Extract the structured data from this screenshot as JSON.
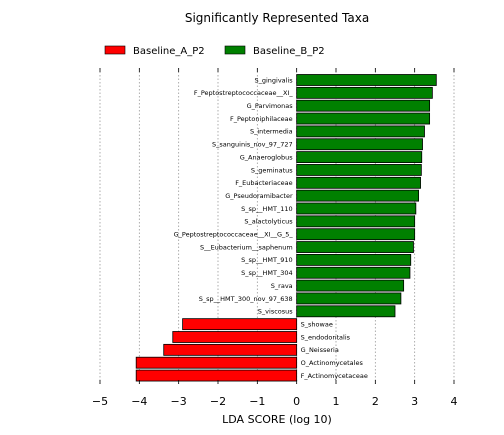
{
  "chart_data": {
    "type": "bar",
    "orientation": "horizontal",
    "title": "Significantly Represented Taxa",
    "xlabel": "LDA SCORE (log 10)",
    "ylabel": "",
    "xlim": [
      -5,
      4
    ],
    "xticks": [
      -5,
      -4,
      -3,
      -2,
      -1,
      0,
      1,
      2,
      3,
      4
    ],
    "xtick_labels": [
      "−5",
      "−4",
      "−3",
      "−2",
      "−1",
      "0",
      "1",
      "2",
      "3",
      "4"
    ],
    "grid": "vertical dotted",
    "legend_position": "top",
    "colors": {
      "Baseline_A_P2": "#ff0000",
      "Baseline_B_P2": "#008000"
    },
    "series": [
      {
        "name": "Baseline_A_P2",
        "color": "#ff0000"
      },
      {
        "name": "Baseline_B_P2",
        "color": "#008000"
      }
    ],
    "bars": [
      {
        "label": "S_gingivalis",
        "value": 3.55,
        "group": "Baseline_B_P2"
      },
      {
        "label": "F_Peptostreptococcaceae__XI_",
        "value": 3.45,
        "group": "Baseline_B_P2"
      },
      {
        "label": "G_Parvimonas",
        "value": 3.38,
        "group": "Baseline_B_P2"
      },
      {
        "label": "F_Peptoniphilaceae",
        "value": 3.38,
        "group": "Baseline_B_P2"
      },
      {
        "label": "S_intermedia",
        "value": 3.25,
        "group": "Baseline_B_P2"
      },
      {
        "label": "S_sanguinis_nov_97_727",
        "value": 3.2,
        "group": "Baseline_B_P2"
      },
      {
        "label": "G_Anaeroglobus",
        "value": 3.18,
        "group": "Baseline_B_P2"
      },
      {
        "label": "S_geminatus",
        "value": 3.17,
        "group": "Baseline_B_P2"
      },
      {
        "label": "F_Eubacteriaceae",
        "value": 3.15,
        "group": "Baseline_B_P2"
      },
      {
        "label": "G_Pseudoramibacter",
        "value": 3.1,
        "group": "Baseline_B_P2"
      },
      {
        "label": "S_sp__HMT_110",
        "value": 3.03,
        "group": "Baseline_B_P2"
      },
      {
        "label": "S_alactolyticus",
        "value": 3.0,
        "group": "Baseline_B_P2"
      },
      {
        "label": "G_Peptostreptococcaceae__XI__G_5_",
        "value": 3.0,
        "group": "Baseline_B_P2"
      },
      {
        "label": "S__Eubacterium__saphenum",
        "value": 2.97,
        "group": "Baseline_B_P2"
      },
      {
        "label": "S_sp__HMT_910",
        "value": 2.9,
        "group": "Baseline_B_P2"
      },
      {
        "label": "S_sp__HMT_304",
        "value": 2.88,
        "group": "Baseline_B_P2"
      },
      {
        "label": "S_rava",
        "value": 2.72,
        "group": "Baseline_B_P2"
      },
      {
        "label": "S_sp__HMT_300_nov_97_638",
        "value": 2.65,
        "group": "Baseline_B_P2"
      },
      {
        "label": "S_viscosus",
        "value": 2.5,
        "group": "Baseline_B_P2"
      },
      {
        "label": "S_showae",
        "value": -2.9,
        "group": "Baseline_A_P2"
      },
      {
        "label": "S_endodontalis",
        "value": -3.15,
        "group": "Baseline_A_P2"
      },
      {
        "label": "G_Neisseria",
        "value": -3.38,
        "group": "Baseline_A_P2"
      },
      {
        "label": "O_Actinomycetales",
        "value": -4.08,
        "group": "Baseline_A_P2"
      },
      {
        "label": "F_Actinomycetaceae",
        "value": -4.08,
        "group": "Baseline_A_P2"
      }
    ]
  }
}
